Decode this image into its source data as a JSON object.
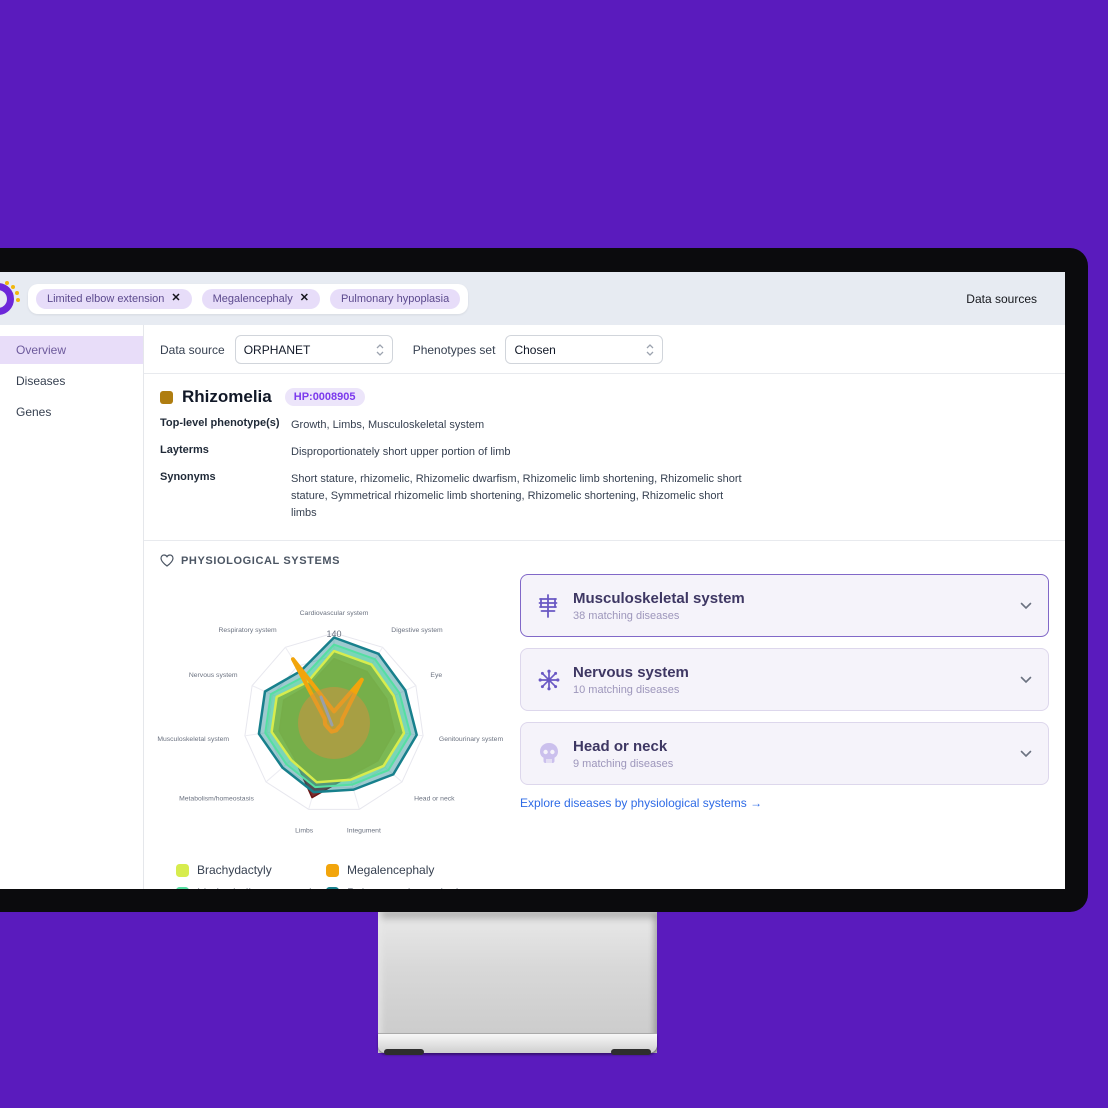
{
  "header": {
    "tags": [
      {
        "label": "Limited elbow extension",
        "closable": true
      },
      {
        "label": "Megalencephaly",
        "closable": true
      },
      {
        "label": "Pulmonary hypoplasia",
        "closable": false
      }
    ],
    "data_sources_label": "Data sources"
  },
  "sidebar": {
    "items": [
      {
        "label": "Overview",
        "active": true
      },
      {
        "label": "Diseases",
        "active": false
      },
      {
        "label": "Genes",
        "active": false
      }
    ]
  },
  "controls": {
    "data_source_label": "Data source",
    "data_source_value": "ORPHANET",
    "phenotypes_set_label": "Phenotypes set",
    "phenotypes_set_value": "Chosen"
  },
  "phenotype": {
    "name": "Rhizomelia",
    "hpo_id": "HP:0008905",
    "bullet_color": "#af7d10",
    "fields": [
      {
        "label": "Top-level phenotype(s)",
        "value": "Growth, Limbs, Musculoskeletal system"
      },
      {
        "label": "Layterms",
        "value": "Disproportionately short upper portion of limb"
      },
      {
        "label": "Synonyms",
        "value": "Short stature, rhizomelic, Rhizomelic dwarfism, Rhizomelic limb shortening, Rhizomelic short stature, Symmetrical rhizomelic limb shortening, Rhizomelic shortening, Rhizomelic short limbs"
      }
    ]
  },
  "physio": {
    "heading": "PHYSIOLOGICAL SYSTEMS",
    "cards": [
      {
        "icon": "ribcage-icon",
        "title": "Musculoskeletal system",
        "subtitle": "38 matching diseases",
        "highlighted": true
      },
      {
        "icon": "neuron-icon",
        "title": "Nervous system",
        "subtitle": "10 matching diseases",
        "highlighted": false
      },
      {
        "icon": "skull-icon",
        "title": "Head or neck",
        "subtitle": "9 matching diseases",
        "highlighted": false
      }
    ],
    "explore_link": "Explore diseases by physiological systems →"
  },
  "legend": [
    {
      "label": "Brachydactyly",
      "color": "#d7ec4d"
    },
    {
      "label": "Megalencephaly",
      "color": "#f2a50c"
    },
    {
      "label": "Limited elbow extension",
      "color": "#55dfa2"
    },
    {
      "label": "Pulmonary hypoplasia",
      "color": "#17808c"
    }
  ],
  "chart_data": {
    "type": "radar",
    "axes": [
      "Cardiovascular system",
      "Digestive system",
      "Eye",
      "Genitourinary system",
      "Head or neck",
      "Integument",
      "Limbs",
      "Metabolism/homeostasis",
      "Musculoskeletal system",
      "Nervous system",
      "Respiratory system"
    ],
    "max": 140,
    "tick_label": "140",
    "grid": true,
    "legend_position": "bottom-left",
    "series": [
      {
        "name": "(unlabeled dark red)",
        "color": "#6b1516",
        "fill": "rgba(107,21,22,0.9)",
        "width": 1.5,
        "values": [
          100,
          95,
          90,
          95,
          90,
          86,
          121,
          82,
          86,
          86,
          70
        ]
      },
      {
        "name": "Pulmonary hypoplasia",
        "color": "#17808c",
        "fill": "rgba(23,128,140,0.42)",
        "width": 2.5,
        "values": [
          133,
          128,
          122,
          130,
          122,
          108,
          112,
          106,
          118,
          118,
          96
        ]
      },
      {
        "name": "Limited elbow extension",
        "color": "#55dfa2",
        "fill": "rgba(85,223,162,0.5)",
        "width": 2,
        "values": [
          122,
          118,
          112,
          120,
          112,
          100,
          104,
          98,
          108,
          108,
          86
        ]
      },
      {
        "name": "Brachydactyly",
        "color": "#d7ec4d",
        "fill": "rgba(124,179,66,0.85)",
        "width": 2.5,
        "values": [
          112,
          108,
          102,
          110,
          102,
          92,
          96,
          88,
          98,
          98,
          76
        ]
      },
      {
        "name": "Megalencephaly",
        "color": "#f2a50c",
        "fill": "rgba(242,165,12,0.28)",
        "width": 4,
        "values": [
          18,
          80,
          14,
          12,
          10,
          12,
          14,
          12,
          14,
          16,
          118
        ]
      }
    ],
    "center_bubble": {
      "radius": 36,
      "color": "rgba(216,144,62,0.5)"
    }
  }
}
